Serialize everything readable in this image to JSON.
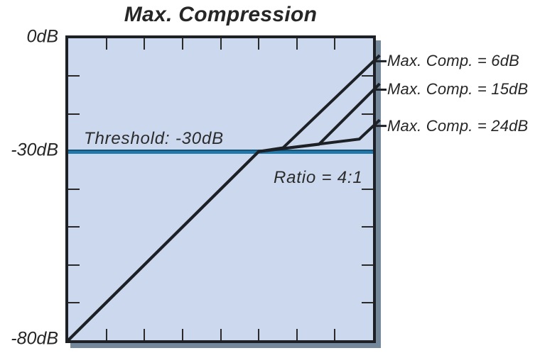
{
  "colors": {
    "plot_fill": "#ccd8ee",
    "line": "#1d2125",
    "threshold_blue": "#2079ab",
    "threshold_edge": "#1a5273",
    "shadow": "#74889b",
    "text": "#262626"
  },
  "chart_data": {
    "type": "line",
    "title": "Max. Compression",
    "x_range": [
      -80,
      0
    ],
    "y_range": [
      -80,
      0
    ],
    "grid": false,
    "ticks_per_edge": 7,
    "legend_position": "right-labels",
    "y_axis_labels": [
      {
        "text": "0dB",
        "db": 0
      },
      {
        "text": "-30dB",
        "db": -30
      },
      {
        "text": "-80dB",
        "db": -80
      }
    ],
    "threshold_db": -30,
    "ratio": "4:1",
    "annotations": {
      "threshold_label": "Threshold: -30dB",
      "ratio_label": "Ratio = 4:1"
    },
    "series": [
      {
        "label": "Max. Comp. = 6dB",
        "max_compression_db": 6,
        "points_db": [
          [
            -80,
            -80
          ],
          [
            -30,
            -30
          ],
          [
            -23.6,
            -29.0
          ],
          [
            0,
            -6.2
          ]
        ]
      },
      {
        "label": "Max. Comp. = 15dB",
        "max_compression_db": 15,
        "points_db": [
          [
            -80,
            -80
          ],
          [
            -30,
            -30
          ],
          [
            -14.2,
            -28.1
          ],
          [
            0,
            -13.8
          ]
        ]
      },
      {
        "label": "Max. Comp. = 24dB",
        "max_compression_db": 24,
        "points_db": [
          [
            -80,
            -80
          ],
          [
            -30,
            -30
          ],
          [
            -3.6,
            -26.7
          ],
          [
            0,
            -23.3
          ]
        ]
      }
    ]
  }
}
